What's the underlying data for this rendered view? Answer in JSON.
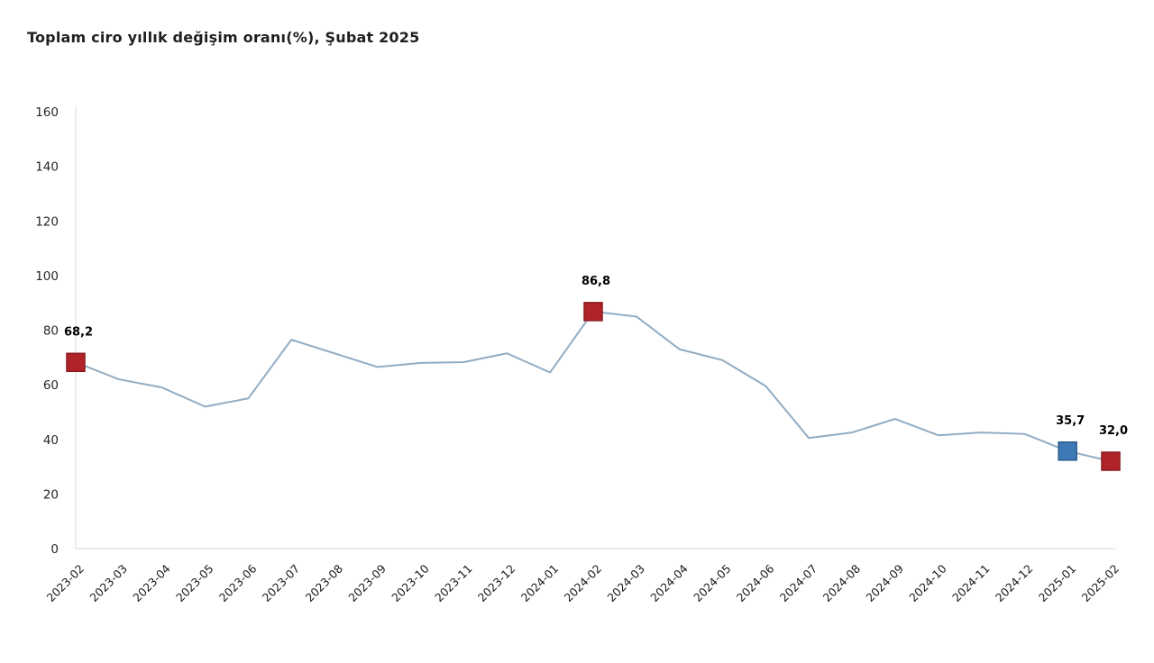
{
  "title": "Toplam ciro yıllık değişim oranı(%), Şubat 2025",
  "chart_data": {
    "type": "line",
    "title": "Toplam ciro yıllık değişim oranı(%), Şubat 2025",
    "x": [
      "2023-02",
      "2023-03",
      "2023-04",
      "2023-05",
      "2023-06",
      "2023-07",
      "2023-08",
      "2023-09",
      "2023-10",
      "2023-11",
      "2023-12",
      "2024-01",
      "2024-02",
      "2024-03",
      "2024-04",
      "2024-05",
      "2024-06",
      "2024-07",
      "2024-08",
      "2024-09",
      "2024-10",
      "2024-11",
      "2024-12",
      "2025-01",
      "2025-02"
    ],
    "series": [
      {
        "name": "Toplam ciro yıllık değişim oranı (%)",
        "values": [
          68.2,
          62,
          59,
          52,
          55,
          76.5,
          71.5,
          66.5,
          68,
          68.3,
          71.5,
          64.5,
          86.8,
          85,
          73,
          69,
          59.5,
          40.5,
          42.5,
          47.5,
          41.5,
          42.5,
          42,
          35.7,
          32
        ]
      }
    ],
    "ylim": [
      0,
      160
    ],
    "ytick_step": 20,
    "yticks": [
      0,
      20,
      40,
      60,
      80,
      100,
      120,
      140,
      160
    ],
    "grid": false,
    "legend": "none",
    "line_color": "#92ACC2",
    "axis_color": "#D9D9D9",
    "highlighted_points": [
      {
        "x": "2023-02",
        "index": 0,
        "value": 68.2,
        "label": "68,2",
        "marker_fill": "#B02428",
        "marker_stroke": "#8B191D"
      },
      {
        "x": "2024-02",
        "index": 12,
        "value": 86.8,
        "label": "86,8",
        "marker_fill": "#B02428",
        "marker_stroke": "#8B191D"
      },
      {
        "x": "2025-01",
        "index": 23,
        "value": 35.7,
        "label": "35,7",
        "marker_fill": "#3D7AB5",
        "marker_stroke": "#2C5C8A"
      },
      {
        "x": "2025-02",
        "index": 24,
        "value": 32.0,
        "label": "32,0",
        "marker_fill": "#B02428",
        "marker_stroke": "#8B191D"
      }
    ]
  }
}
